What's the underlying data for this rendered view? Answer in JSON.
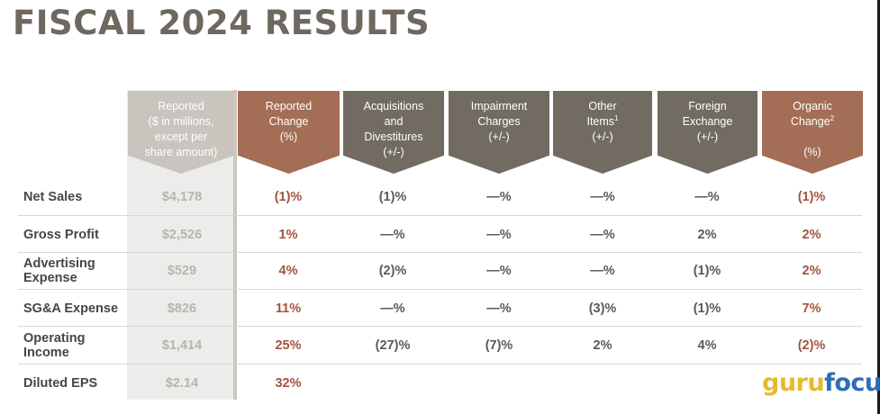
{
  "title": "FISCAL 2024 RESULTS",
  "colors": {
    "reported": "#c9c4bd",
    "gray_header": "#716b62",
    "accent_header": "#a46d55",
    "accent_text": "#a0543e",
    "gray_text": "#5e5952",
    "muted_text": "#b9b4ad"
  },
  "headers": [
    {
      "lines": [
        "Reported",
        "($ in millions,",
        "except per",
        "share amount)"
      ],
      "footnote": ""
    },
    {
      "lines": [
        "Reported",
        "Change",
        "(%)"
      ],
      "footnote": ""
    },
    {
      "lines": [
        "Acquisitions",
        "and",
        "Divestitures",
        "(+/-)"
      ],
      "footnote": ""
    },
    {
      "lines": [
        "Impairment",
        "Charges",
        "(+/-)"
      ],
      "footnote": ""
    },
    {
      "lines": [
        "Other",
        "Items",
        "(+/-)"
      ],
      "footnote": "1"
    },
    {
      "lines": [
        "Foreign",
        "Exchange",
        "(+/-)"
      ],
      "footnote": ""
    },
    {
      "lines": [
        "Organic",
        "Change",
        "",
        "(%)"
      ],
      "footnote": "2"
    }
  ],
  "rows": [
    {
      "label": [
        "Net Sales"
      ],
      "values": [
        "$4,178",
        "(1)%",
        "(1)%",
        "—%",
        "—%",
        "—%",
        "(1)%"
      ]
    },
    {
      "label": [
        "Gross Profit"
      ],
      "values": [
        "$2,526",
        "1%",
        "—%",
        "—%",
        "—%",
        "2%",
        "2%"
      ]
    },
    {
      "label": [
        "Advertising",
        "Expense"
      ],
      "values": [
        "$529",
        "4%",
        "(2)%",
        "—%",
        "—%",
        "(1)%",
        "2%"
      ]
    },
    {
      "label": [
        "SG&A Expense"
      ],
      "values": [
        "$826",
        "11%",
        "—%",
        "—%",
        "(3)%",
        "(1)%",
        "7%"
      ]
    },
    {
      "label": [
        "Operating",
        "Income"
      ],
      "values": [
        "$1,414",
        "25%",
        "(27)%",
        "(7)%",
        "2%",
        "4%",
        "(2)%"
      ]
    },
    {
      "label": [
        "Diluted EPS"
      ],
      "values": [
        "$2.14",
        "32%",
        "",
        "",
        "",
        "",
        ""
      ]
    }
  ],
  "logo": {
    "part1": "guru",
    "part2": "focus"
  }
}
